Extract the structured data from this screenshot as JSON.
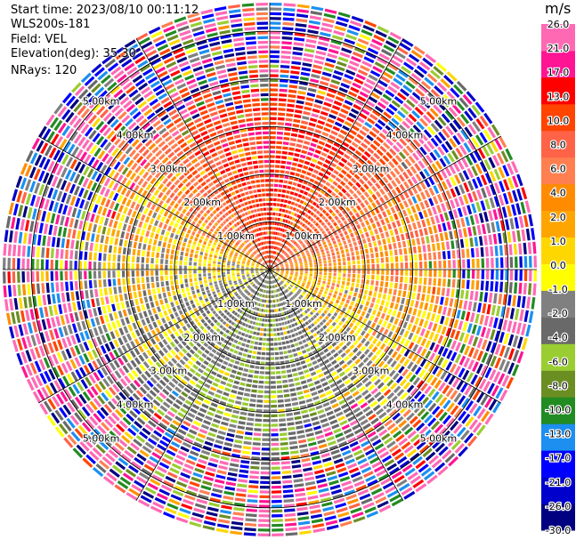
{
  "info": {
    "start_time": "Start time: 2023/08/10 00:11:12",
    "instrument": "WLS200s-181",
    "field": "Field: VEL",
    "elevation": "Elevation(deg): 35.30",
    "nrays": "NRays: 120"
  },
  "colorbar": {
    "unit": "m/s",
    "colors": [
      "#000080",
      "#0000cd",
      "#0000ff",
      "#1c8ff0",
      "#228b22",
      "#6b8e23",
      "#9acd32",
      "#696969",
      "#808080",
      "#ffff00",
      "#ffd700",
      "#ffa500",
      "#ff8c00",
      "#ff7f50",
      "#ff6347",
      "#ff4500",
      "#ff0000",
      "#ff1493",
      "#ff69b4"
    ],
    "tick_labels": [
      "-30.0",
      "-26.0",
      "-21.0",
      "-17.0",
      "-13.0",
      "-10.0",
      "-8.0",
      "-6.0",
      "-4.0",
      "-2.0",
      "-1.0",
      "0.0",
      "1.0",
      "2.0",
      "4.0",
      "6.0",
      "8.0",
      "10.0",
      "13.0",
      "17.0",
      "21.0",
      "26.0"
    ]
  },
  "chart_data": {
    "type": "ppi",
    "title": "",
    "field": "VEL",
    "units": "m/s",
    "elevation_deg": 35.3,
    "n_rays": 120,
    "range_rings_km": [
      1,
      2,
      3,
      4,
      5
    ],
    "max_range_km": 5.6,
    "ring_labels": [
      "1.00km",
      "2.00km",
      "3.00km",
      "4.00km",
      "5.00km"
    ],
    "pattern": {
      "near_range_max_km": 3.2,
      "sectors": [
        {
          "name": "north",
          "azimuth_center_deg": 0,
          "velocity_mps": 9.0
        },
        {
          "name": "east",
          "azimuth_center_deg": 90,
          "velocity_mps": 1.5
        },
        {
          "name": "south",
          "azimuth_center_deg": 180,
          "velocity_mps": -6.0
        },
        {
          "name": "west",
          "azimuth_center_deg": 270,
          "velocity_mps": -2.0
        }
      ],
      "far_range_noise": true
    }
  }
}
